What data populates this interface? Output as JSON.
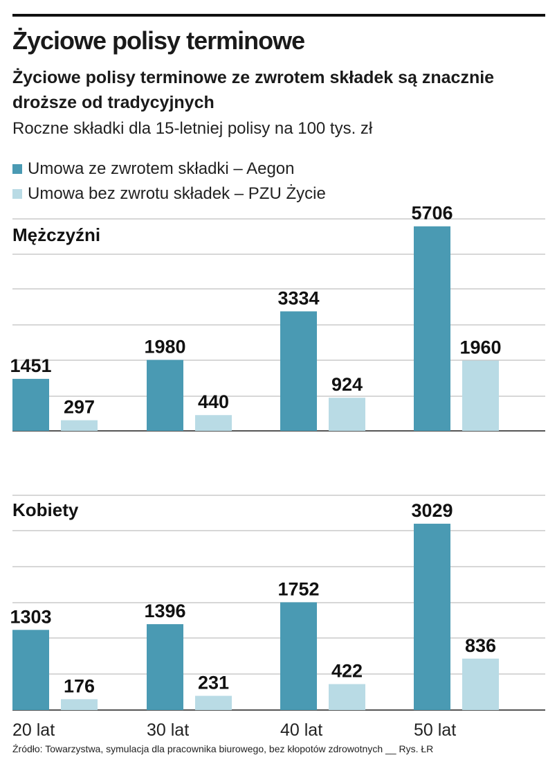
{
  "title": "Życiowe polisy terminowe",
  "subtitle": "Życiowe polisy terminowe ze zwrotem składek są znacznie droższe od tradycyjnych",
  "description": "Roczne składki dla 15-letniej polisy na 100 tys. zł",
  "legend": [
    {
      "label": "Umowa ze zwrotem składki – Aegon",
      "color": "#4a9ab3"
    },
    {
      "label": "Umowa bez zwrotu składek – PZU Życie",
      "color": "#b9dbe5"
    }
  ],
  "source": "Źródło: Towarzystwa, symulacja dla pracownika biurowego, bez kłopotów zdrowotnych __ Rys. ŁR",
  "chart_data": [
    {
      "type": "bar",
      "title": "Mężczyźni",
      "categories": [
        "20 lat",
        "30 lat",
        "40 lat",
        "50 lat"
      ],
      "series": [
        {
          "name": "Umowa ze zwrotem składki – Aegon",
          "values": [
            1451,
            1980,
            3334,
            5706
          ]
        },
        {
          "name": "Umowa bez zwrotu składek – PZU Życie",
          "values": [
            297,
            440,
            924,
            1960
          ]
        }
      ],
      "ylim": [
        0,
        6000
      ],
      "grid": true
    },
    {
      "type": "bar",
      "title": "Kobiety",
      "categories": [
        "20 lat",
        "30 lat",
        "40 lat",
        "50 lat"
      ],
      "series": [
        {
          "name": "Umowa ze zwrotem składki – Aegon",
          "values": [
            1303,
            1396,
            1752,
            3029
          ]
        },
        {
          "name": "Umowa bez zwrotu składek – PZU Życie",
          "values": [
            176,
            231,
            422,
            836
          ]
        }
      ],
      "ylim": [
        0,
        3000
      ],
      "grid": true
    }
  ]
}
